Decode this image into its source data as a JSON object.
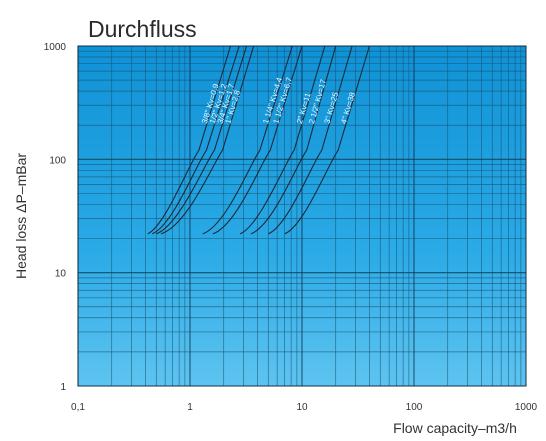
{
  "chart_data": {
    "type": "line",
    "title": "Durchfluss",
    "xlabel": "Flow capacity–m3/h",
    "ylabel": "Head loss ΔP–mBar",
    "xscale": "log",
    "yscale": "log",
    "xlim": [
      0.1,
      1000
    ],
    "ylim": [
      1,
      1000
    ],
    "x_ticks": [
      "0,1",
      "1",
      "10",
      "100",
      "1000"
    ],
    "y_ticks": [
      "1",
      "10",
      "100",
      "1000"
    ],
    "grid": true,
    "background_color": "#1aa3e0",
    "line_color": "#1a2a3a",
    "series": [
      {
        "name": "3/8\" Kv=0,9",
        "x": [
          0.42,
          0.6,
          1.2,
          2.3
        ],
        "y": [
          22,
          26,
          120,
          1000
        ]
      },
      {
        "name": "1/2\" Kv=1,2",
        "x": [
          0.46,
          0.7,
          1.4,
          2.75
        ],
        "y": [
          22,
          26,
          120,
          1000
        ]
      },
      {
        "name": "3/4\" Kv=1,7",
        "x": [
          0.5,
          0.8,
          1.65,
          3.2
        ],
        "y": [
          22,
          26,
          120,
          1000
        ]
      },
      {
        "name": "1\" Kv=2,8",
        "x": [
          0.55,
          0.95,
          1.95,
          3.7
        ],
        "y": [
          22,
          26,
          120,
          1000
        ]
      },
      {
        "name": "1 1/4\" Kv=4,4",
        "x": [
          1.3,
          2.1,
          4.2,
          8.2
        ],
        "y": [
          22,
          26,
          120,
          1000
        ]
      },
      {
        "name": "1 1/2\" Kv=6,7",
        "x": [
          1.6,
          2.6,
          5.2,
          10
        ],
        "y": [
          22,
          26,
          120,
          1000
        ]
      },
      {
        "name": "2\" Kv=11",
        "x": [
          2.8,
          4.2,
          8.5,
          16
        ],
        "y": [
          22,
          26,
          120,
          1000
        ]
      },
      {
        "name": "2 1/2\" Kv=17",
        "x": [
          3.5,
          5.5,
          11,
          20
        ],
        "y": [
          22,
          26,
          120,
          1000
        ]
      },
      {
        "name": "3\" Kv=25",
        "x": [
          5,
          7.5,
          15,
          28
        ],
        "y": [
          22,
          26,
          120,
          1000
        ]
      },
      {
        "name": "4\" Kv=38",
        "x": [
          7,
          10.5,
          21,
          40
        ],
        "y": [
          22,
          26,
          120,
          1000
        ]
      }
    ]
  }
}
